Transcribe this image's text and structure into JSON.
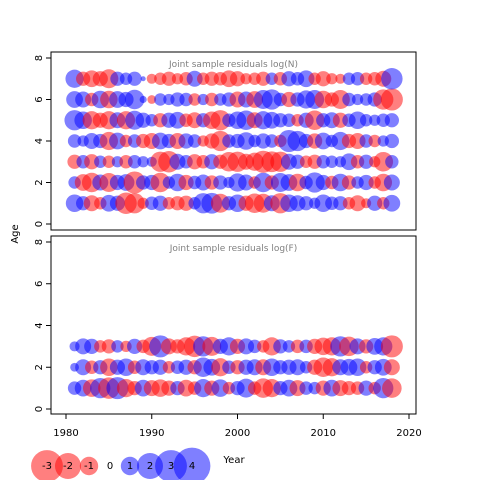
{
  "figure": {
    "ylabel": "Age",
    "xlabel": "Year",
    "x_ticks": [
      1980,
      1990,
      2000,
      2010,
      2020
    ],
    "y_ticks": [
      0,
      2,
      4,
      6,
      8
    ],
    "colors": {
      "positive": "#0000ff",
      "negative": "#ff0000",
      "frame": "#000000",
      "title": "#808080"
    }
  },
  "chart_data": [
    {
      "type": "scatter",
      "subtype": "bubble",
      "title": "Joint sample residuals log(N)",
      "xlabel": "Year",
      "ylabel": "Age",
      "xlim": [
        1980,
        2020
      ],
      "ylim": [
        0,
        8
      ],
      "size_encodes": "|residual|",
      "color_encodes": "sign (blue positive, red negative)",
      "ages": [
        1,
        2,
        3,
        4,
        5,
        6,
        7
      ],
      "years": [
        1981,
        1982,
        1983,
        1984,
        1985,
        1986,
        1987,
        1988,
        1989,
        1990,
        1991,
        1992,
        1993,
        1994,
        1995,
        1996,
        1997,
        1998,
        1999,
        2000,
        2001,
        2002,
        2003,
        2004,
        2005,
        2006,
        2007,
        2008,
        2009,
        2010,
        2011,
        2012,
        2013,
        2014,
        2015,
        2016,
        2017,
        2018
      ],
      "residuals": [
        [
          1.2,
          0.8,
          -1.0,
          -0.6,
          1.1,
          0.9,
          -1.8,
          -1.6,
          -0.5,
          0.7,
          0.9,
          -0.6,
          -0.8,
          -0.9,
          0.6,
          1.6,
          1.7,
          -1.4,
          0.8,
          1.2,
          -0.9,
          -1.5,
          -1.4,
          1.0,
          -1.6,
          1.2,
          1.0,
          0.8,
          0.5,
          1.2,
          0.7,
          0.8,
          -0.6,
          -1.0,
          -0.4,
          0.9,
          -0.6,
          1.1
        ],
        [
          0.6,
          -1.1,
          -1.5,
          1.0,
          -1.4,
          0.9,
          1.1,
          -1.9,
          0.8,
          0.9,
          -1.5,
          0.6,
          1.2,
          -0.9,
          0.7,
          1.0,
          -0.8,
          0.8,
          0.5,
          1.3,
          1.0,
          -0.6,
          1.5,
          -0.8,
          1.4,
          1.1,
          -1.2,
          0.7,
          1.6,
          0.9,
          -0.7,
          1.2,
          -0.8,
          0.6,
          0.9,
          -0.6,
          -1.2,
          1.0
        ],
        [
          -0.8,
          0.7,
          -0.9,
          0.6,
          -0.6,
          0.5,
          -0.7,
          0.7,
          0.5,
          0.4,
          -1.6,
          -1.8,
          1.0,
          0.7,
          -0.9,
          -0.7,
          0.9,
          -0.8,
          -1.5,
          -1.6,
          -1.0,
          -1.3,
          -1.9,
          -1.7,
          -1.6,
          1.0,
          0.8,
          -0.6,
          -0.8,
          0.7,
          0.6,
          0.5,
          1.1,
          -0.7,
          0.8,
          -0.5,
          -1.5,
          0.7
        ],
        [
          0.7,
          0.5,
          1.0,
          0.8,
          -1.3,
          1.1,
          -0.6,
          0.7,
          -0.8,
          -1.0,
          1.1,
          0.8,
          -1.0,
          0.9,
          0.7,
          -0.5,
          -0.9,
          -1.6,
          0.7,
          0.8,
          1.2,
          0.6,
          0.9,
          0.7,
          -0.6,
          1.9,
          1.6,
          0.8,
          -0.9,
          1.1,
          0.6,
          1.3,
          -0.8,
          -1.0,
          0.7,
          -0.6,
          0.5,
          0.8
        ],
        [
          1.6,
          1.2,
          -1.3,
          -0.9,
          -1.3,
          1.0,
          -1.3,
          1.4,
          0.9,
          0.6,
          -0.8,
          0.9,
          1.1,
          -0.7,
          -1.0,
          0.8,
          -1.2,
          -1.6,
          0.7,
          1.2,
          1.5,
          -1.0,
          1.3,
          1.1,
          0.8,
          0.7,
          -0.6,
          0.9,
          -1.5,
          0.8,
          1.0,
          -0.9,
          0.7,
          1.2,
          0.6,
          0.5,
          0.7,
          0.8
        ],
        [
          1.1,
          1.0,
          -0.7,
          1.2,
          -1.2,
          1.1,
          0.9,
          1.5,
          0.2,
          -0.3,
          0.6,
          0.5,
          0.8,
          0.7,
          -0.6,
          0.5,
          -0.7,
          0.6,
          0.8,
          -1.0,
          1.0,
          -1.1,
          1.4,
          1.6,
          0.7,
          -0.9,
          0.8,
          1.3,
          1.4,
          -1.2,
          -0.8,
          -1.4,
          0.7,
          0.5,
          0.6,
          0.8,
          -1.6,
          -1.9
        ],
        [
          1.3,
          -0.8,
          -1.1,
          -0.9,
          -1.4,
          0.8,
          0.6,
          0.8,
          0.1,
          -0.4,
          -0.6,
          -0.8,
          -0.5,
          -0.7,
          1.0,
          -0.6,
          -0.8,
          -0.7,
          -1.1,
          -0.9,
          -0.5,
          -0.6,
          -0.8,
          0.6,
          -0.7,
          0.9,
          0.7,
          1.1,
          -0.6,
          -0.9,
          -0.5,
          -0.4,
          0.6,
          0.7,
          -0.6,
          -0.7,
          -1.0,
          1.8
        ]
      ]
    },
    {
      "type": "scatter",
      "subtype": "bubble",
      "title": "Joint sample residuals log(F)",
      "xlabel": "Year",
      "ylabel": "Age",
      "xlim": [
        1980,
        2020
      ],
      "ylim": [
        0,
        8
      ],
      "size_encodes": "|residual|",
      "color_encodes": "sign (blue positive, red negative)",
      "ages": [
        1,
        2,
        3
      ],
      "years": [
        1981,
        1982,
        1983,
        1984,
        1985,
        1986,
        1987,
        1988,
        1989,
        1990,
        1991,
        1992,
        1993,
        1994,
        1995,
        1996,
        1997,
        1998,
        1999,
        2000,
        2001,
        2002,
        2003,
        2004,
        2005,
        2006,
        2007,
        2008,
        2009,
        2010,
        2011,
        2012,
        2013,
        2014,
        2015,
        2016,
        2017,
        2018
      ],
      "residuals": [
        [
          0.7,
          1.1,
          -1.2,
          1.6,
          -1.8,
          1.9,
          -1.3,
          -0.8,
          1.1,
          -1.0,
          -1.2,
          -0.9,
          0.8,
          -1.1,
          -0.7,
          1.3,
          -0.9,
          1.2,
          -0.6,
          0.8,
          1.4,
          -0.7,
          -1.5,
          -1.3,
          0.8,
          1.1,
          -1.0,
          0.7,
          0.6,
          -0.9,
          1.1,
          -1.0,
          -0.8,
          -0.7,
          0.9,
          -0.6,
          1.6,
          -1.5
        ],
        [
          0.3,
          1.0,
          -0.7,
          0.8,
          -1.2,
          0.9,
          1.2,
          -0.7,
          1.0,
          0.8,
          0.9,
          -0.6,
          0.7,
          0.9,
          -0.8,
          1.5,
          1.1,
          -1.3,
          0.7,
          -0.8,
          0.9,
          1.0,
          -1.0,
          1.2,
          0.8,
          0.9,
          1.0,
          0.6,
          -0.9,
          -1.5,
          -1.3,
          1.0,
          1.1,
          1.2,
          -0.6,
          0.8,
          1.1,
          -1.0
        ],
        [
          0.4,
          1.0,
          0.9,
          -0.6,
          -0.8,
          0.6,
          -0.5,
          0.9,
          -0.7,
          -1.4,
          1.9,
          -1.0,
          -0.8,
          -1.3,
          -1.8,
          1.6,
          -1.4,
          0.9,
          1.3,
          -0.9,
          1.0,
          0.7,
          -0.6,
          -1.3,
          0.8,
          0.6,
          -0.7,
          0.7,
          -0.9,
          -1.2,
          -1.3,
          1.6,
          -1.5,
          1.0,
          -0.8,
          1.1,
          1.3,
          -1.9
        ]
      ]
    }
  ],
  "legend": {
    "items": [
      {
        "label": "-3",
        "value": -3
      },
      {
        "label": "-2",
        "value": -2
      },
      {
        "label": "-1",
        "value": -1
      },
      {
        "label": "0",
        "value": 0
      },
      {
        "label": "1",
        "value": 1
      },
      {
        "label": "2",
        "value": 2
      },
      {
        "label": "3",
        "value": 3
      },
      {
        "label": "4",
        "value": 4
      }
    ]
  }
}
